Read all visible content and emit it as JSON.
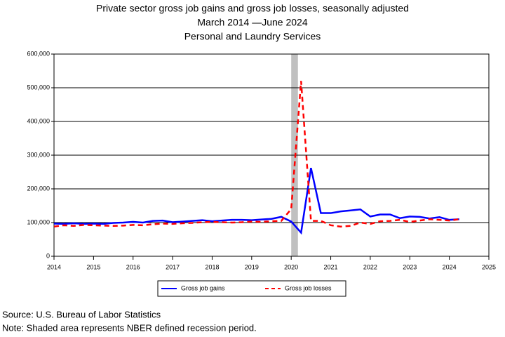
{
  "chart_data": {
    "type": "line",
    "title": "Private sector gross job gains and gross job losses, seasonally adjusted",
    "subtitle": "March 2014 —June 2024",
    "subtitle2": "Personal and Laundry Services",
    "x": [
      2014,
      2014.25,
      2014.5,
      2014.75,
      2015,
      2015.25,
      2015.5,
      2015.75,
      2016,
      2016.25,
      2016.5,
      2016.75,
      2017,
      2017.25,
      2017.5,
      2017.75,
      2018,
      2018.25,
      2018.5,
      2018.75,
      2019,
      2019.25,
      2019.5,
      2019.75,
      2020,
      2020.25,
      2020.5,
      2020.75,
      2021,
      2021.25,
      2021.5,
      2021.75,
      2022,
      2022.25,
      2022.5,
      2022.75,
      2023,
      2023.25,
      2023.5,
      2023.75,
      2024,
      2024.25
    ],
    "series": [
      {
        "name": "Gross job gains",
        "color": "#0000ff",
        "dash": false,
        "values": [
          97000,
          96000,
          98000,
          96000,
          97000,
          96000,
          99000,
          100000,
          102000,
          100000,
          105000,
          106000,
          101000,
          103000,
          105000,
          107000,
          104000,
          106000,
          108000,
          108000,
          107000,
          109000,
          111000,
          117000,
          103000,
          70000,
          262000,
          128000,
          128000,
          133000,
          136000,
          139000,
          118000,
          124000,
          124000,
          113000,
          118000,
          117000,
          112000,
          116000,
          108000,
          110000
        ]
      },
      {
        "name": "Gross job losses",
        "color": "#ff0000",
        "dash": true,
        "values": [
          88000,
          92000,
          90000,
          93000,
          92000,
          91000,
          90000,
          91000,
          93000,
          92000,
          95000,
          97000,
          96000,
          98000,
          99000,
          101000,
          102000,
          101000,
          100000,
          101000,
          103000,
          102000,
          104000,
          105000,
          140000,
          520000,
          105000,
          105000,
          92000,
          88000,
          90000,
          100000,
          96000,
          104000,
          105000,
          108000,
          102000,
          106000,
          110000,
          108000,
          106000,
          110000
        ]
      }
    ],
    "xlim": [
      2014,
      2025
    ],
    "xticks": [
      2014,
      2015,
      2016,
      2017,
      2018,
      2019,
      2020,
      2021,
      2022,
      2023,
      2024,
      2025
    ],
    "ylim": [
      0,
      600000
    ],
    "yticks": [
      0,
      {
        "value": 100000,
        "label": "100,000"
      },
      {
        "value": 200000,
        "label": "200,000"
      },
      {
        "value": 300000,
        "label": "300,000"
      },
      {
        "value": 400000,
        "label": "400,000"
      },
      {
        "value": 500000,
        "label": "500,000"
      },
      {
        "value": 600000,
        "label": "600,000"
      }
    ],
    "grid": true,
    "recession": [
      2020,
      2020.17
    ],
    "recession_color": "#c0c0c0",
    "legend": "bottom",
    "source": "Source: U.S. Bureau of Labor Statistics",
    "note": "Note: Shaded area represents NBER defined recession period."
  }
}
